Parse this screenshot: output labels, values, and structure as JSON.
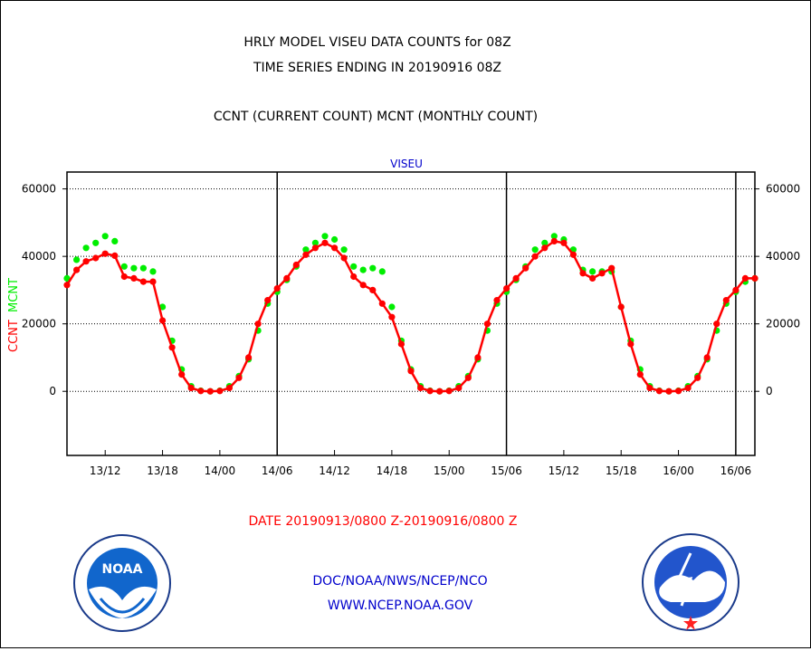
{
  "title_line1": "HRLY MODEL VISEU DATA COUNTS for 08Z",
  "title_line2": "TIME SERIES ENDING IN 20190916 08Z",
  "title_line3": "CCNT (CURRENT COUNT) MCNT (MONTHLY COUNT)",
  "footer_line1": "DOC/NOAA/NWS/NCEP/NCO",
  "footer_line2": "WWW.NCEP.NOAA.GOV",
  "logo_left_text": "NOAA",
  "colors": {
    "ccnt": "#ff0000",
    "mcnt": "#00ee00",
    "label_blue": "#0000cc",
    "grid": "#000000"
  },
  "chart_data": {
    "type": "line",
    "title": "VISEU",
    "xlabel": "DATE 20190913/0800 Z-20190916/0800 Z",
    "ylabel_left": [
      "CCNT",
      "MCNT"
    ],
    "ylim": [
      -19000,
      65000
    ],
    "yticks": [
      0,
      20000,
      40000,
      60000
    ],
    "ytick_labels_left": [
      "0",
      "20000",
      "40000",
      "60000"
    ],
    "ytick_labels_right": [
      "0",
      "20000",
      "40000",
      "60000"
    ],
    "xlim": [
      0,
      72
    ],
    "xticks": [
      4,
      10,
      16,
      22,
      28,
      34,
      40,
      46,
      52,
      58,
      64,
      70
    ],
    "xtick_labels": [
      "13/12",
      "13/18",
      "14/00",
      "14/06",
      "14/12",
      "14/18",
      "15/00",
      "15/06",
      "15/12",
      "15/18",
      "16/00",
      "16/06"
    ],
    "day_lines": [
      22,
      46,
      70
    ],
    "grid": true,
    "series": [
      {
        "name": "CCNT",
        "color": "#ff0000",
        "x": [
          0,
          1,
          2,
          3,
          4,
          5,
          6,
          7,
          8,
          9,
          10,
          11,
          12,
          13,
          14,
          15,
          16,
          17,
          18,
          19,
          20,
          21,
          22,
          23,
          24,
          25,
          26,
          27,
          28,
          29,
          30,
          31,
          32,
          33,
          34,
          35,
          36,
          37,
          38,
          39,
          40,
          41,
          42,
          43,
          44,
          45,
          46,
          47,
          48,
          49,
          50,
          51,
          52,
          53,
          54,
          55,
          56,
          57,
          58,
          59,
          60,
          61,
          62,
          63,
          64,
          65,
          66,
          67,
          68,
          69,
          70,
          71,
          72
        ],
        "values": [
          31500,
          36000,
          38500,
          39500,
          40800,
          40200,
          34000,
          33500,
          32500,
          32500,
          21000,
          13000,
          5000,
          1000,
          100,
          0,
          100,
          1000,
          4000,
          10000,
          20000,
          27000,
          30500,
          33500,
          37500,
          40500,
          42500,
          44000,
          42500,
          39500,
          34000,
          31500,
          30000,
          26000,
          22000,
          14000,
          6000,
          1000,
          100,
          0,
          100,
          1000,
          4000,
          10000,
          20000,
          27000,
          30500,
          33500,
          36500,
          40000,
          42500,
          44500,
          44000,
          40500,
          35000,
          33500,
          35000,
          36500,
          25000,
          14000,
          5000,
          1000,
          100,
          0,
          100,
          1000,
          4000,
          10000,
          20000,
          27000,
          30000,
          33500,
          33500
        ]
      },
      {
        "name": "MCNT",
        "color": "#00ee00",
        "x": [
          0,
          1,
          2,
          3,
          4,
          5,
          6,
          7,
          8,
          9,
          10,
          11,
          12,
          13,
          14,
          15,
          16,
          17,
          18,
          19,
          20,
          21,
          22,
          23,
          24,
          25,
          26,
          27,
          28,
          29,
          30,
          31,
          32,
          33,
          34,
          35,
          36,
          37,
          38,
          39,
          40,
          41,
          42,
          43,
          44,
          45,
          46,
          47,
          48,
          49,
          50,
          51,
          52,
          53,
          54,
          55,
          56,
          57,
          58,
          59,
          60,
          61,
          62,
          63,
          64,
          65,
          66,
          67,
          68,
          69,
          70,
          71,
          72
        ],
        "values": [
          33500,
          39000,
          42500,
          44000,
          46000,
          44500,
          37000,
          36500,
          36500,
          35500,
          25000,
          15000,
          6500,
          1500,
          200,
          0,
          200,
          1500,
          4500,
          9500,
          18000,
          26000,
          29500,
          33000,
          37000,
          42000,
          44000,
          46000,
          45000,
          42000,
          37000,
          36000,
          36500,
          35500,
          25000,
          15000,
          6500,
          1500,
          200,
          0,
          200,
          1500,
          4500,
          9500,
          18000,
          26000,
          29500,
          33000,
          37000,
          42000,
          44000,
          46000,
          45000,
          42000,
          36000,
          35500,
          35500,
          35500,
          25000,
          15000,
          6500,
          1500,
          200,
          0,
          200,
          1500,
          4500,
          9500,
          18000,
          26000,
          29500,
          32500,
          33500
        ]
      }
    ]
  }
}
